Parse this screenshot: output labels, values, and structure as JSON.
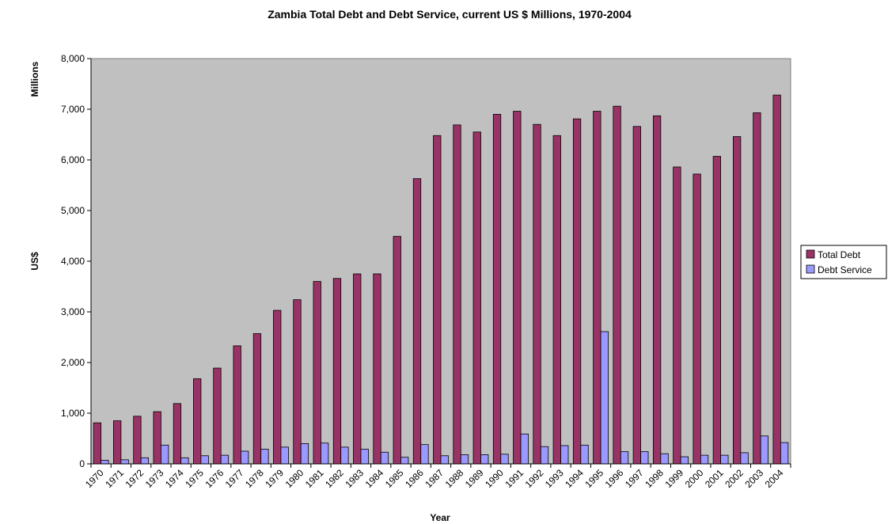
{
  "chart_data": {
    "type": "bar",
    "title": "Zambia Total Debt and Debt Service, current US $ Millions, 1970-2004",
    "xlabel": "Year",
    "ylabel": "US$",
    "yunit": "Millions",
    "ylim": [
      0,
      8000
    ],
    "yticks": [
      "0",
      "1,000",
      "2,000",
      "3,000",
      "4,000",
      "5,000",
      "6,000",
      "7,000",
      "8,000"
    ],
    "grid": false,
    "legend": "right",
    "categories": [
      "1970",
      "1971",
      "1972",
      "1973",
      "1974",
      "1975",
      "1976",
      "1977",
      "1978",
      "1979",
      "1980",
      "1981",
      "1982",
      "1983",
      "1984",
      "1985",
      "1986",
      "1987",
      "1988",
      "1989",
      "1990",
      "1991",
      "1992",
      "1993",
      "1994",
      "1995",
      "1996",
      "1997",
      "1998",
      "1999",
      "2000",
      "2001",
      "2002",
      "2003",
      "2004"
    ],
    "series": [
      {
        "name": "Total Debt",
        "color": "#993366",
        "values": [
          810,
          850,
          940,
          1030,
          1190,
          1680,
          1890,
          2330,
          2570,
          3030,
          3240,
          3600,
          3660,
          3750,
          3750,
          4490,
          5630,
          6480,
          6690,
          6550,
          6900,
          6960,
          6700,
          6480,
          6810,
          6960,
          7060,
          6660,
          6870,
          5860,
          5720,
          6070,
          6460,
          6930,
          7280
        ]
      },
      {
        "name": "Debt Service",
        "color": "#9999ff",
        "values": [
          70,
          80,
          120,
          370,
          120,
          160,
          170,
          250,
          290,
          330,
          400,
          410,
          330,
          290,
          230,
          130,
          380,
          160,
          180,
          180,
          190,
          590,
          340,
          360,
          370,
          2610,
          240,
          240,
          200,
          140,
          170,
          170,
          220,
          550,
          420
        ]
      }
    ],
    "plot_background": "#c0c0c0"
  }
}
